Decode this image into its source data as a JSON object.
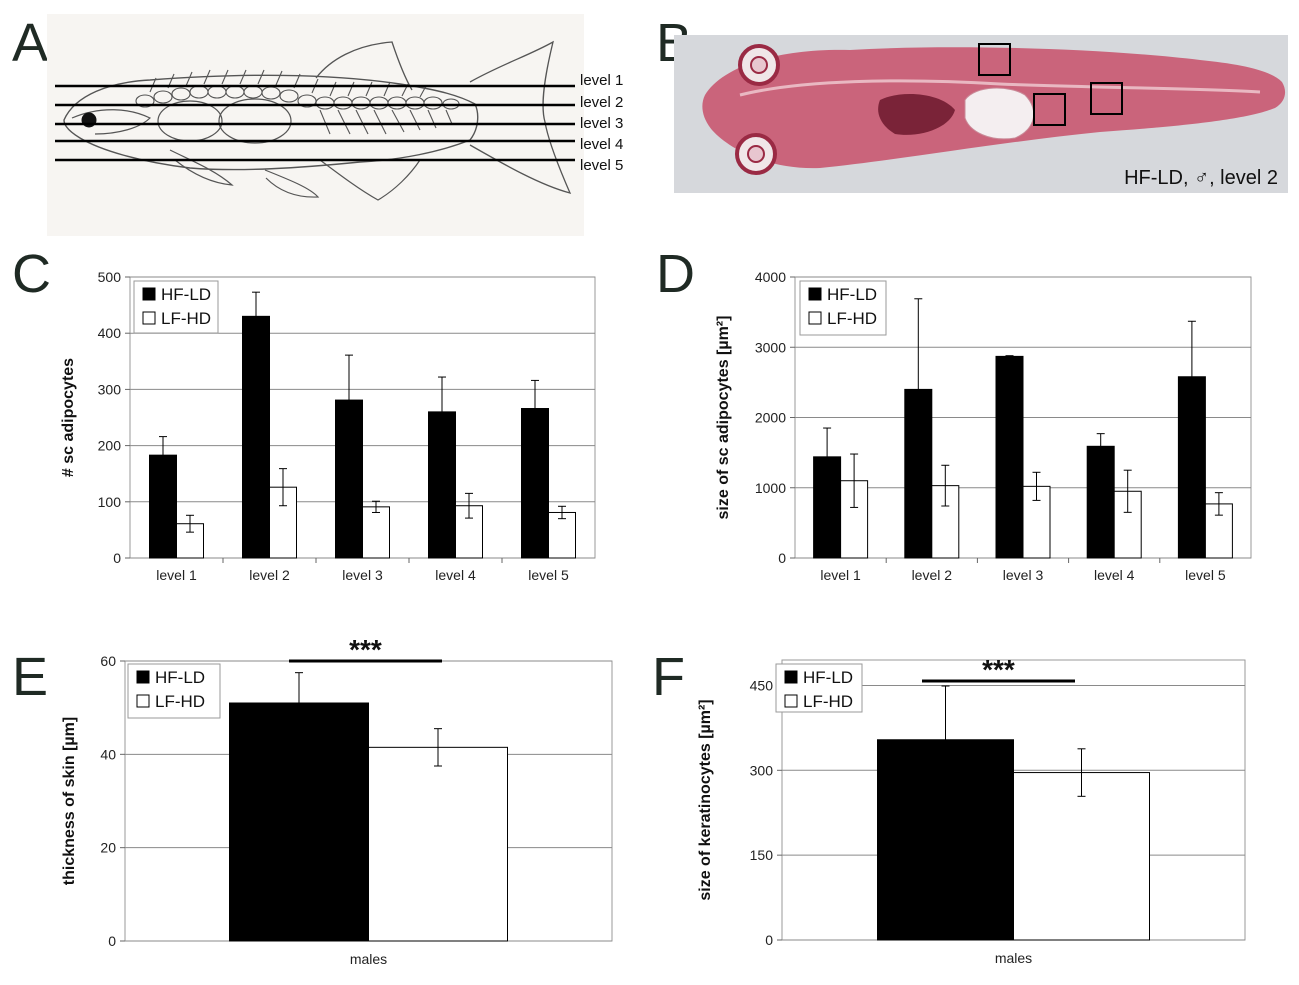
{
  "panels": {
    "A": {
      "letter": "A",
      "levels": [
        "level 1",
        "level 2",
        "level 3",
        "level 4",
        "level 5"
      ]
    },
    "B": {
      "letter": "B",
      "caption": "HF-LD, ♂, level 2"
    },
    "C": {
      "letter": "C"
    },
    "D": {
      "letter": "D"
    },
    "E": {
      "letter": "E"
    },
    "F": {
      "letter": "F"
    }
  },
  "colors": {
    "hf_ld": "#000000",
    "lf_hd": "#ffffff",
    "grid": "#8a8a8a",
    "histology_tissue": "#c8506a"
  },
  "chart_data": [
    {
      "id": "C",
      "type": "bar",
      "categories": [
        "level 1",
        "level 2",
        "level 3",
        "level 4",
        "level 5"
      ],
      "ylabel": "# sc adipocytes",
      "xlabel": "",
      "ylim": [
        0,
        500
      ],
      "yticks": [
        0,
        100,
        200,
        300,
        400,
        500
      ],
      "grid": true,
      "legend": "top-left",
      "series": [
        {
          "name": "HF-LD",
          "values": [
            183,
            430,
            281,
            260,
            266
          ],
          "errors": [
            33,
            43,
            80,
            62,
            50
          ]
        },
        {
          "name": "LF-HD",
          "values": [
            61,
            126,
            91,
            93,
            81
          ],
          "errors": [
            15,
            33,
            10,
            22,
            11
          ]
        }
      ]
    },
    {
      "id": "D",
      "type": "bar",
      "categories": [
        "level 1",
        "level 2",
        "level 3",
        "level 4",
        "level 5"
      ],
      "ylabel": "size of sc adipocytes [µm²]",
      "xlabel": "",
      "ylim": [
        0,
        4000
      ],
      "yticks": [
        0,
        1000,
        2000,
        3000,
        4000
      ],
      "grid": true,
      "legend": "top-left",
      "series": [
        {
          "name": "HF-LD",
          "values": [
            1440,
            2400,
            2870,
            1590,
            2580
          ],
          "errors": [
            410,
            1290,
            10,
            180,
            790
          ]
        },
        {
          "name": "LF-HD",
          "values": [
            1100,
            1030,
            1020,
            950,
            770
          ],
          "errors": [
            380,
            290,
            200,
            300,
            160
          ]
        }
      ]
    },
    {
      "id": "E",
      "type": "bar",
      "categories": [
        "males"
      ],
      "ylabel": "thickness of skin [µm]",
      "xlabel": "",
      "ylim": [
        0,
        60
      ],
      "yticks": [
        0,
        20,
        40,
        60
      ],
      "grid": true,
      "legend": "top-left",
      "significance": "***",
      "series": [
        {
          "name": "HF-LD",
          "values": [
            51
          ],
          "errors": [
            6.5
          ]
        },
        {
          "name": "LF-HD",
          "values": [
            41.5
          ],
          "errors": [
            4
          ]
        }
      ]
    },
    {
      "id": "F",
      "type": "bar",
      "categories": [
        "males"
      ],
      "ylabel": "size of keratinocytes [µm²]",
      "xlabel": "",
      "ylim": [
        0,
        495
      ],
      "yticks": [
        0,
        150,
        300,
        450
      ],
      "grid": true,
      "legend": "top-left",
      "significance": "***",
      "series": [
        {
          "name": "HF-LD",
          "values": [
            354
          ],
          "errors": [
            95
          ]
        },
        {
          "name": "LF-HD",
          "values": [
            296
          ],
          "errors": [
            42
          ]
        }
      ]
    }
  ]
}
